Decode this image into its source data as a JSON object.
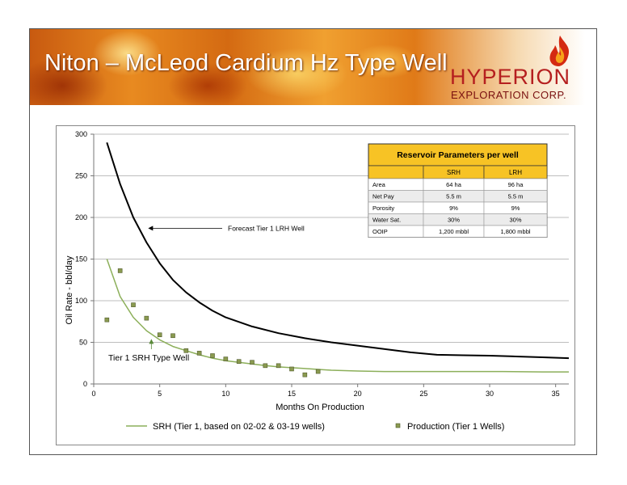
{
  "slide": {
    "title": "Niton – McLeod Cardium Hz Type Well",
    "logo": {
      "word": "HYPERION",
      "sub": "EXPLORATION CORP."
    }
  },
  "chart_data": {
    "type": "line",
    "xlabel": "Months On Production",
    "ylabel": "Oil Rate - bbl/day",
    "xlim": [
      0,
      36
    ],
    "ylim": [
      0,
      300
    ],
    "x_ticks": [
      0,
      5,
      10,
      15,
      20,
      25,
      30,
      35
    ],
    "y_ticks": [
      0,
      50,
      100,
      150,
      200,
      250,
      300
    ],
    "grid": "horizontal",
    "legend_position": "bottom",
    "series": [
      {
        "name": "SRH  (Tier 1, based on 02-02 & 03-19 wells)",
        "type": "line",
        "color": "#8caf5a",
        "x": [
          1,
          2,
          3,
          4,
          5,
          6,
          7,
          8,
          9,
          10,
          11,
          12,
          13,
          14,
          15,
          16,
          17,
          18,
          20,
          22,
          25,
          28,
          31,
          34,
          36
        ],
        "y": [
          150,
          105,
          80,
          64,
          53,
          45,
          40,
          35,
          31,
          28,
          26,
          24,
          22,
          20.5,
          19.5,
          18.5,
          17.5,
          16.5,
          15.5,
          15,
          15,
          15,
          15,
          14.5,
          14.5
        ]
      },
      {
        "name": "Forecast Tier 1 LRH Well",
        "type": "line",
        "color": "#000000",
        "x": [
          1,
          2,
          3,
          4,
          5,
          6,
          7,
          8,
          9,
          10,
          12,
          14,
          16,
          18,
          20,
          22,
          24,
          26,
          28,
          30,
          32,
          34,
          36
        ],
        "y": [
          290,
          240,
          200,
          170,
          145,
          125,
          110,
          98,
          88,
          80,
          69,
          61,
          55,
          50,
          46,
          42,
          38,
          35,
          34.5,
          34,
          33,
          32,
          31
        ]
      },
      {
        "name": "Production (Tier 1 Wells)",
        "type": "scatter",
        "color": "#8a9a50",
        "x": [
          1,
          2,
          3,
          4,
          5,
          6,
          7,
          8,
          9,
          10,
          11,
          12,
          13,
          14,
          15,
          16,
          17
        ],
        "y": [
          77,
          136,
          95,
          79,
          59,
          58,
          40,
          37,
          34,
          30,
          27,
          26,
          22,
          22,
          18,
          11,
          15
        ]
      }
    ],
    "annotations": [
      {
        "text": "Forecast Tier 1 LRH Well",
        "target": [
          4,
          187
        ]
      },
      {
        "text": "Tier 1 SRH Type Well",
        "target": [
          4,
          56
        ]
      }
    ],
    "table": {
      "title": "Reservoir Parameters per well",
      "columns": [
        "",
        "SRH",
        "LRH"
      ],
      "rows": [
        [
          "Area",
          "64 ha",
          "96 ha"
        ],
        [
          "Net Pay",
          "5.5 m",
          "5.5 m"
        ],
        [
          "Porosity",
          "9%",
          "9%"
        ],
        [
          "Water Sat.",
          "30%",
          "30%"
        ],
        [
          "OOIP",
          "1,200 mbbl",
          "1,800 mbbl"
        ]
      ]
    }
  }
}
